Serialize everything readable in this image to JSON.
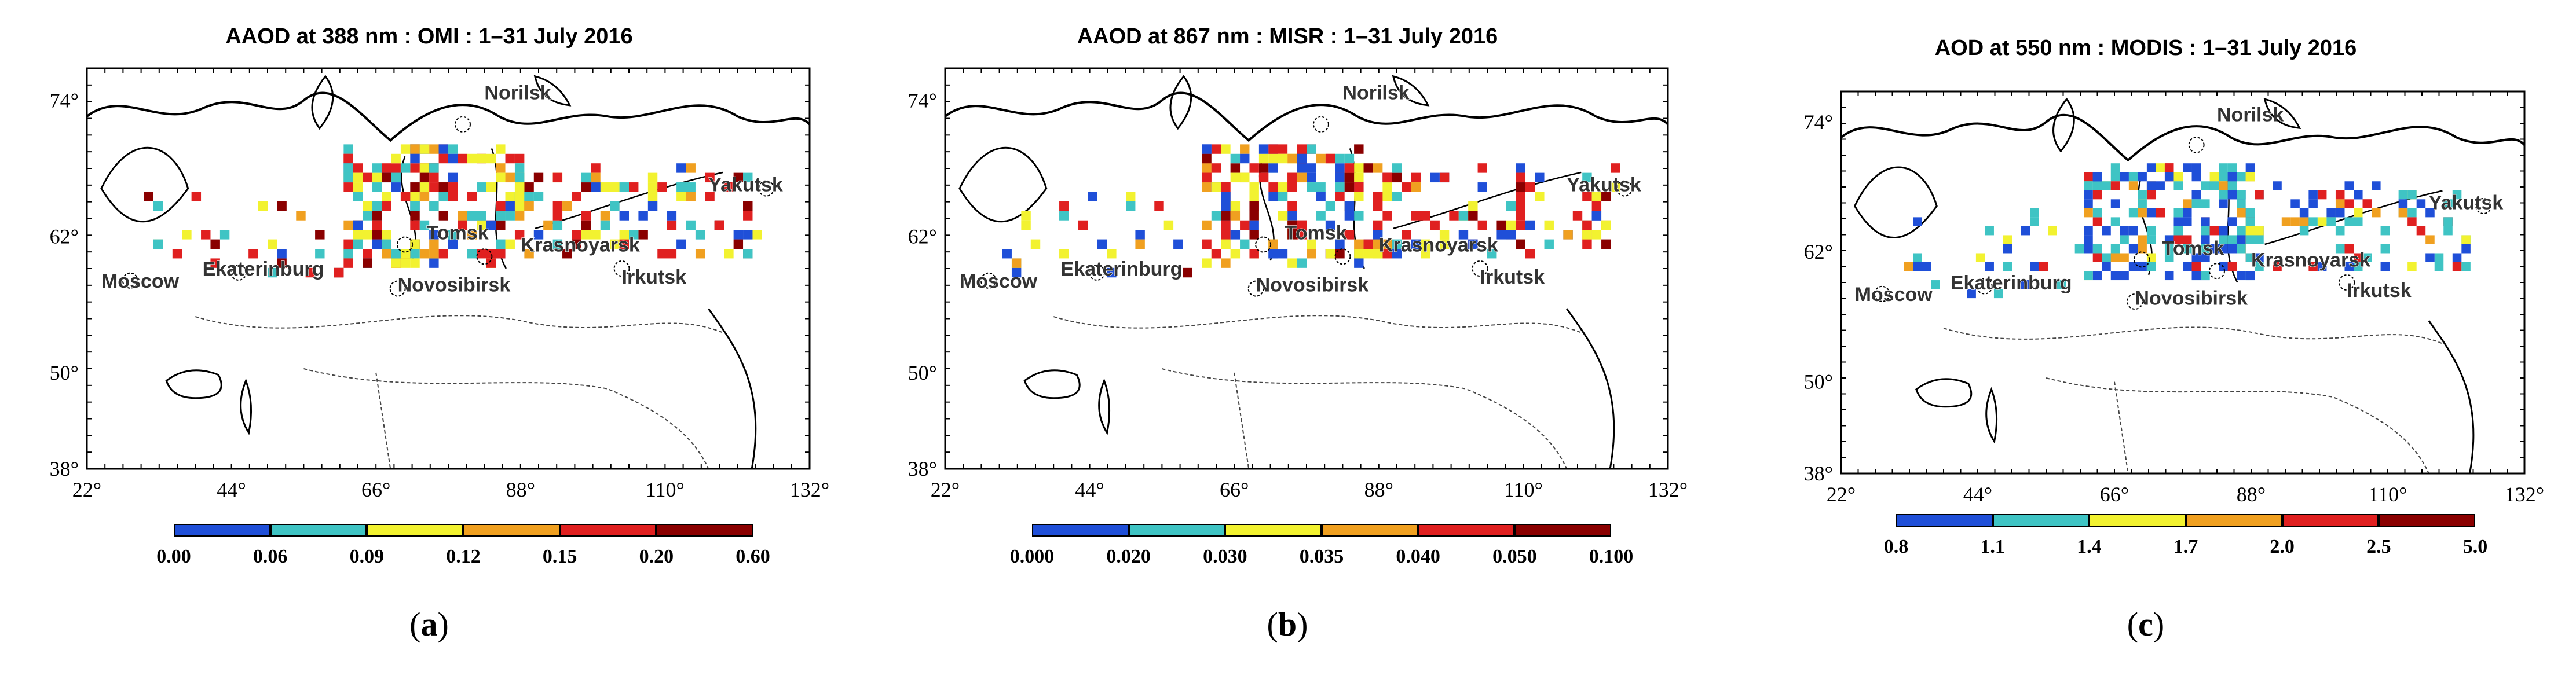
{
  "panels": [
    {
      "title": "AAOD at 388 nm : OMI : 1–31 July 2016",
      "caption_letter": "a",
      "colorbar": {
        "labels": [
          "0.00",
          "0.06",
          "0.09",
          "0.12",
          "0.15",
          "0.20",
          "0.60"
        ],
        "colors": [
          "#1f4fd8",
          "#3fc4c4",
          "#f2f230",
          "#f0a020",
          "#e02020",
          "#8a0000"
        ]
      }
    },
    {
      "title": "AAOD at 867 nm : MISR : 1–31 July 2016",
      "caption_letter": "b",
      "colorbar": {
        "labels": [
          "0.000",
          "0.020",
          "0.030",
          "0.035",
          "0.040",
          "0.050",
          "0.100"
        ],
        "colors": [
          "#1f4fd8",
          "#3fc4c4",
          "#f2f230",
          "#f0a020",
          "#e02020",
          "#8a0000"
        ]
      }
    },
    {
      "title": "AOD at 550 nm : MODIS : 1–31 July 2016",
      "caption_letter": "c",
      "colorbar": {
        "labels": [
          "0.8",
          "1.1",
          "1.4",
          "1.7",
          "2.0",
          "2.5",
          "5.0"
        ],
        "colors": [
          "#1f4fd8",
          "#3fc4c4",
          "#f2f230",
          "#f0a020",
          "#e02020",
          "#8a0000"
        ]
      }
    }
  ],
  "axes": {
    "lat_labels": [
      "74°",
      "62°",
      "50°",
      "38°"
    ],
    "lon_labels": [
      "22°",
      "44°",
      "66°",
      "88°",
      "110°",
      "132°"
    ]
  },
  "cities": [
    "Norilsk",
    "Yakutsk",
    "Tomsk",
    "Krasnoyarsk",
    "Moscow",
    "Ekaterinburg",
    "Novosibirsk",
    "Irkutsk"
  ]
}
